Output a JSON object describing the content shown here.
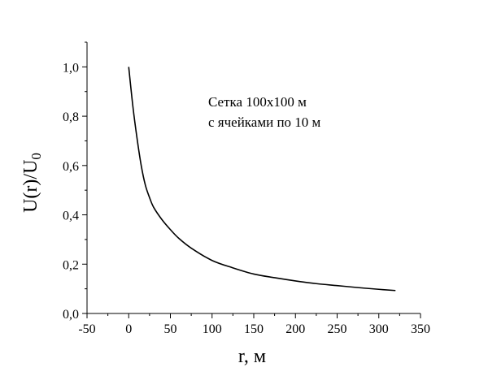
{
  "chart_data": {
    "type": "line",
    "xlabel": "r, м",
    "ylabel_main": "U(r)/U",
    "ylabel_sub": "0",
    "xlim": [
      -50,
      350
    ],
    "ylim": [
      0.0,
      1.1
    ],
    "x_ticks": [
      -50,
      0,
      50,
      100,
      150,
      200,
      250,
      300,
      350
    ],
    "x_tick_labels": [
      "-50",
      "0",
      "50",
      "100",
      "150",
      "200",
      "250",
      "300",
      "350"
    ],
    "y_ticks": [
      0.0,
      0.2,
      0.4,
      0.6,
      0.8,
      1.0
    ],
    "y_tick_labels": [
      "0,0",
      "0,2",
      "0,4",
      "0,6",
      "0,8",
      "1,0"
    ],
    "annotation": [
      "Сетка 100x100 м",
      "с ячейками по 10 м"
    ],
    "series": [
      {
        "color": "#000000",
        "x": [
          0,
          5,
          10,
          15,
          20,
          25,
          30,
          40,
          50,
          60,
          75,
          100,
          125,
          150,
          175,
          200,
          225,
          250,
          275,
          300,
          320
        ],
        "y": [
          1.0,
          0.84,
          0.71,
          0.6,
          0.52,
          0.47,
          0.43,
          0.38,
          0.34,
          0.305,
          0.265,
          0.215,
          0.185,
          0.16,
          0.145,
          0.132,
          0.121,
          0.113,
          0.105,
          0.098,
          0.093
        ]
      }
    ]
  }
}
